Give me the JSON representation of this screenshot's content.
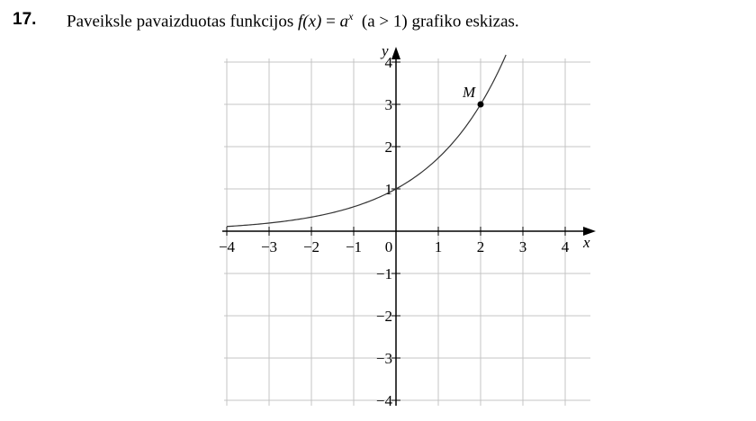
{
  "problem": {
    "number": "17.",
    "text_before": "Paveiksle pavaizduotas funkcijos ",
    "func_lhs": "f(x)",
    "equals": " = ",
    "base": "a",
    "exponent": "x",
    "condition": "(a > 1)",
    "text_after": " grafiko eskizas."
  },
  "chart_data": {
    "type": "line",
    "function": "y = a^x",
    "base_a": 1.732,
    "xlim": [
      -4,
      4
    ],
    "ylim": [
      -4,
      4
    ],
    "grid": true,
    "xlabel": "x",
    "ylabel": "y",
    "x_tick_labels": [
      "−4",
      "−3",
      "−2",
      "−1",
      "0",
      "1",
      "2",
      "3",
      "4"
    ],
    "x_tick_values": [
      -4,
      -3,
      -2,
      -1,
      0,
      1,
      2,
      3,
      4
    ],
    "y_tick_labels": [
      "4",
      "3",
      "2",
      "1",
      "−1",
      "−2",
      "−3",
      "−4"
    ],
    "y_tick_values": [
      4,
      3,
      2,
      1,
      -1,
      -2,
      -3,
      -4
    ],
    "points": [
      {
        "label": "M",
        "x": 2,
        "y": 3
      }
    ],
    "curve_x_range": [
      -4,
      2.6
    ]
  }
}
